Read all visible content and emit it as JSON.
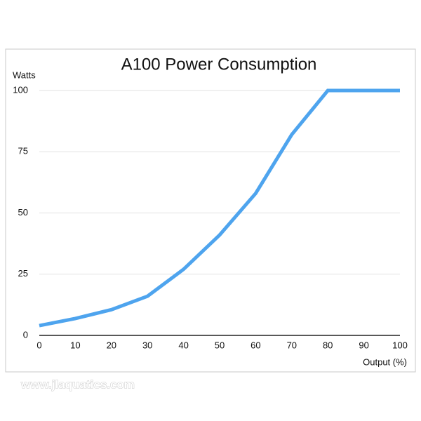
{
  "chart_data": {
    "type": "line",
    "title": "A100 Power Consumption",
    "y_label": "Watts",
    "x_label": "Output (%)",
    "x": [
      0,
      10,
      20,
      30,
      40,
      50,
      60,
      70,
      80,
      90,
      100
    ],
    "series": [
      {
        "color": "#4ea4ee",
        "values": [
          4,
          6.9,
          10.5,
          16,
          27,
          41,
          58,
          82,
          100,
          100,
          100
        ]
      }
    ],
    "xlim": [
      0,
      100
    ],
    "xticks": [
      0,
      10,
      20,
      30,
      40,
      50,
      60,
      70,
      80,
      90,
      100
    ],
    "ylim": [
      0,
      100
    ],
    "yticks": [
      0,
      25,
      50,
      75,
      100
    ],
    "grid": true
  },
  "watermark": "www.jlaquatics.com"
}
